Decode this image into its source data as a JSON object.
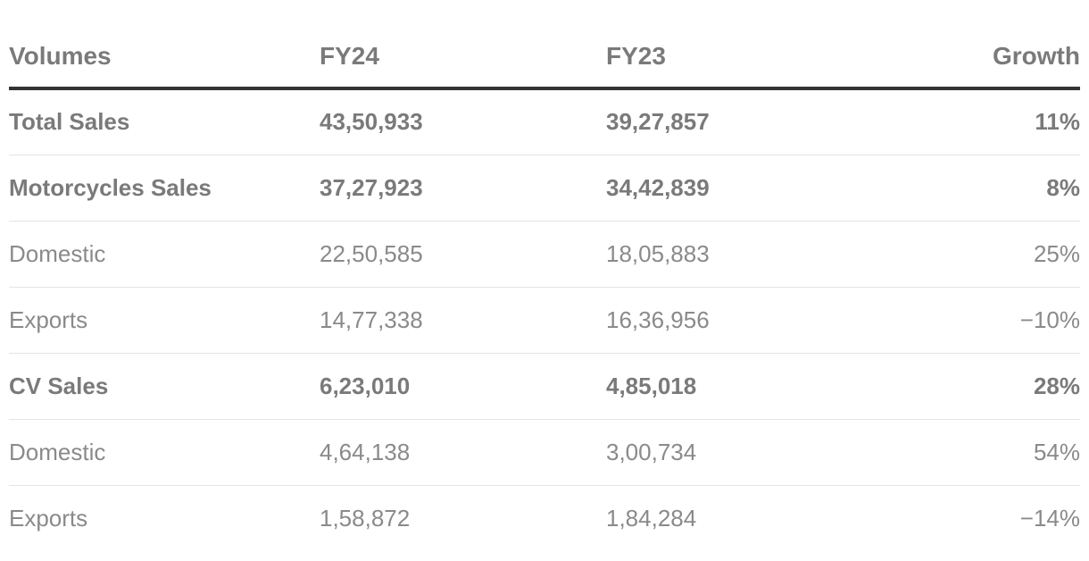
{
  "table": {
    "headers": {
      "volumes": "Volumes",
      "fy24": "FY24",
      "fy23": "FY23",
      "growth": "Growth"
    },
    "rows": [
      {
        "label": "Total Sales",
        "fy24": "43,50,933",
        "fy23": "39,27,857",
        "growth": "11%",
        "bold": true
      },
      {
        "label": "Motorcycles Sales",
        "fy24": "37,27,923",
        "fy23": "34,42,839",
        "growth": "8%",
        "bold": true
      },
      {
        "label": "Domestic",
        "fy24": "22,50,585",
        "fy23": "18,05,883",
        "growth": "25%",
        "bold": false
      },
      {
        "label": "Exports",
        "fy24": "14,77,338",
        "fy23": "16,36,956",
        "growth": "−10%",
        "bold": false
      },
      {
        "label": "CV Sales",
        "fy24": "6,23,010",
        "fy23": "4,85,018",
        "growth": "28%",
        "bold": true
      },
      {
        "label": "Domestic",
        "fy24": "4,64,138",
        "fy23": "3,00,734",
        "growth": "54%",
        "bold": false
      },
      {
        "label": "Exports",
        "fy24": "1,58,872",
        "fy23": "1,84,284",
        "growth": "−14%",
        "bold": false
      }
    ]
  },
  "colors": {
    "text": "#7a7a7a",
    "header_rule": "#333333",
    "row_divider": "#e4e4e4"
  }
}
